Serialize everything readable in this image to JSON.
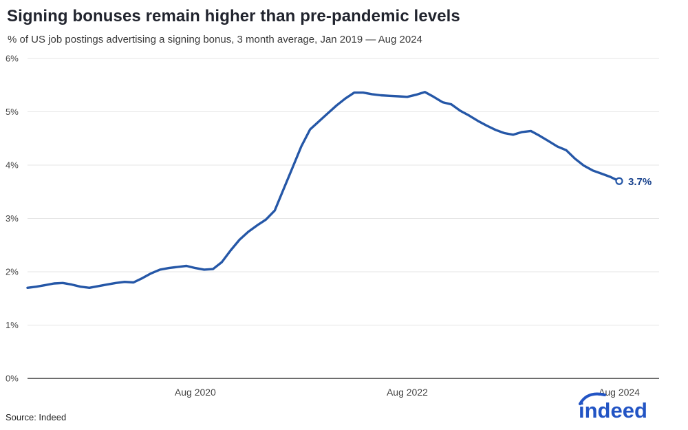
{
  "header": {
    "title": "Signing bonuses remain higher than pre-pandemic levels",
    "subtitle": "% of US job postings advertising a signing bonus, 3 month average, Jan 2019 — Aug 2024"
  },
  "footer": {
    "source": "Source: Indeed",
    "logo_text": "indeed"
  },
  "annotation": {
    "last_value_label": "3.7%"
  },
  "colors": {
    "line": "#2557a7",
    "annotation": "#17418c",
    "grid": "#e4e4e4",
    "axis": "#3f3f3f",
    "tick": "#444444",
    "logo": "#2254c4"
  },
  "chart_data": {
    "type": "line",
    "title": "Signing bonuses remain higher than pre-pandemic levels",
    "subtitle": "% of US job postings advertising a signing bonus, 3 month average, Jan 2019 — Aug 2024",
    "x_unit": "month",
    "x_start": "Jan 2019",
    "x_end": "Aug 2024",
    "ylim": [
      0,
      6
    ],
    "grid": true,
    "legend": false,
    "y_ticks": [
      "0%",
      "1%",
      "2%",
      "3%",
      "4%",
      "5%",
      "6%"
    ],
    "x_ticks": [
      {
        "label": "Aug 2020",
        "month_index": 19
      },
      {
        "label": "Aug 2022",
        "month_index": 43
      },
      {
        "label": "Aug 2024",
        "month_index": 67
      }
    ],
    "series": [
      {
        "name": "% of US job postings advertising a signing bonus (3-month average)",
        "values": [
          1.7,
          1.72,
          1.75,
          1.78,
          1.79,
          1.76,
          1.72,
          1.7,
          1.73,
          1.76,
          1.79,
          1.81,
          1.8,
          1.88,
          1.97,
          2.04,
          2.07,
          2.09,
          2.11,
          2.07,
          2.04,
          2.05,
          2.18,
          2.4,
          2.6,
          2.75,
          2.87,
          2.98,
          3.15,
          3.55,
          3.95,
          4.35,
          4.67,
          4.82,
          4.97,
          5.12,
          5.25,
          5.36,
          5.36,
          5.33,
          5.31,
          5.3,
          5.29,
          5.28,
          5.32,
          5.37,
          5.28,
          5.18,
          5.14,
          5.02,
          4.93,
          4.83,
          4.74,
          4.66,
          4.6,
          4.57,
          4.62,
          4.64,
          4.55,
          4.45,
          4.35,
          4.28,
          4.12,
          3.99,
          3.9,
          3.84,
          3.78,
          3.7
        ],
        "last_value": 3.7
      }
    ]
  }
}
